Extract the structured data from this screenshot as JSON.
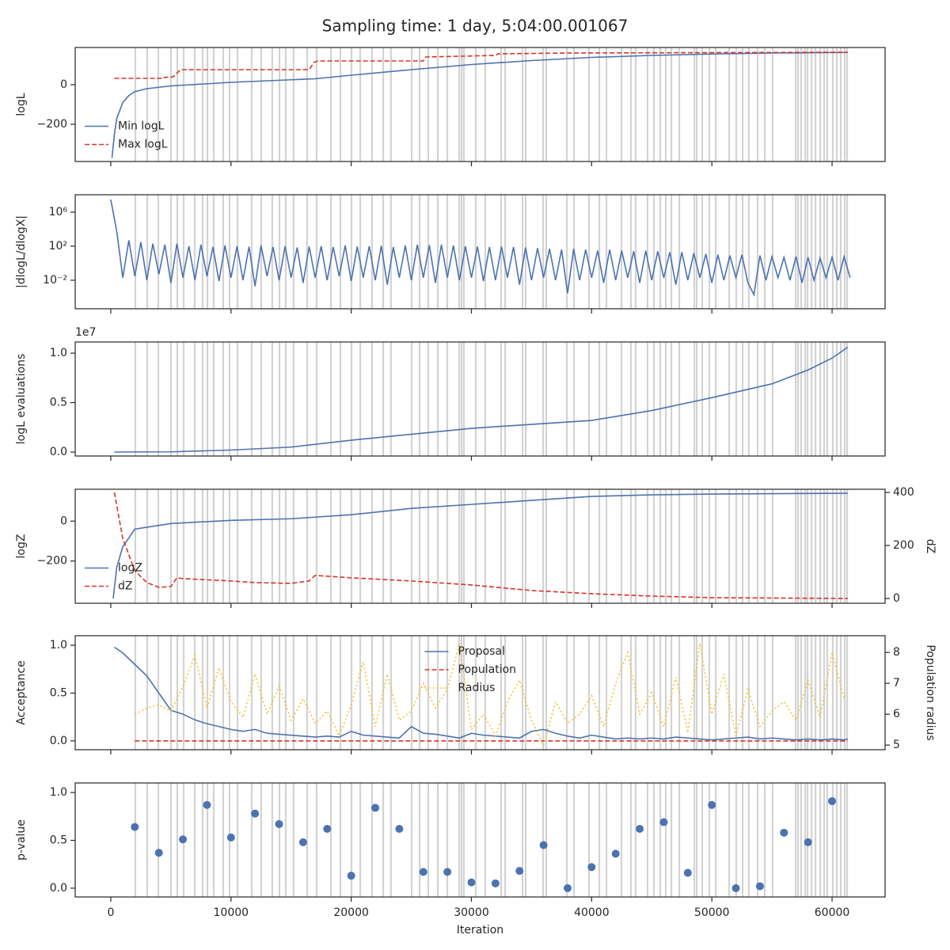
{
  "title": "Sampling time: 1 day, 5:04:00.001067",
  "vlines": [
    2040,
    3030,
    3950,
    5005,
    5530,
    6060,
    6980,
    7640,
    8035,
    8560,
    9350,
    9880,
    10540,
    11720,
    12510,
    13430,
    14030,
    14550,
    15210,
    16330,
    17120,
    18310,
    19100,
    20020,
    20750,
    21730,
    22660,
    23310,
    25030,
    25690,
    26410,
    27200,
    27990,
    28980,
    29180,
    29370,
    30360,
    31150,
    32470,
    32800,
    34250,
    34510,
    35960,
    36220,
    37940,
    38530,
    39780,
    40640,
    41230,
    42480,
    43270,
    43660,
    44650,
    45180,
    45710,
    46170,
    46630,
    47290,
    48540,
    48740,
    49200,
    49790,
    50320,
    51440,
    52030,
    52560,
    53080,
    53810,
    54400,
    55060,
    56970,
    57170,
    57430,
    57760,
    57960,
    58290,
    58620,
    59010,
    59340,
    59600,
    60060,
    60390,
    60720,
    61050,
    61250
  ],
  "chart_data": [
    {
      "type": "line",
      "ylabel": "logL",
      "xlim": [
        -2960,
        64410
      ],
      "ylim": [
        -388,
        188
      ],
      "yticks": [
        {
          "value": -200,
          "label": "−200"
        },
        0
      ],
      "legend": "lower left",
      "series": [
        {
          "name": "Min logL",
          "color": "#4c72b0",
          "style": "solid",
          "x": [
            100,
            300,
            500,
            1000,
            1500,
            2000,
            3000,
            5000,
            10000,
            15000,
            17000,
            20000,
            25000,
            30000,
            35000,
            40000,
            45000,
            50000,
            55000,
            61300
          ],
          "values": [
            -370,
            -250,
            -170,
            -90,
            -55,
            -35,
            -20,
            -6,
            12,
            25,
            30,
            48,
            76,
            102,
            122,
            138,
            148,
            155,
            160,
            163
          ]
        },
        {
          "name": "Max logL",
          "color": "#d6342b",
          "style": "dashed",
          "x": [
            300,
            4300,
            4300,
            5200,
            5800,
            16500,
            16900,
            17200,
            26000,
            26200,
            32000,
            32200,
            38000,
            61300
          ],
          "values": [
            32,
            32,
            36,
            40,
            76,
            76,
            112,
            120,
            120,
            140,
            148,
            156,
            160,
            164
          ]
        }
      ]
    },
    {
      "type": "line",
      "ylabel": "|dlogL/dlogX|",
      "yscale": "log",
      "xlim": [
        -2960,
        64410
      ],
      "ylim": [
        4.5e-06,
        110000000
      ],
      "yticks": [
        {
          "value": 0.01,
          "label": "10⁻²"
        },
        {
          "value": 100,
          "label": "10²"
        },
        {
          "value": 1000000,
          "label": "10⁶"
        }
      ],
      "series": [
        {
          "color": "#4c72b0",
          "style": "solid",
          "x": [
            0,
            500,
            1000,
            1500,
            2000,
            2500,
            3000,
            3500,
            4000,
            4500,
            5000,
            5500,
            6000,
            6500,
            7000,
            7500,
            8000,
            8500,
            9000,
            9500,
            10000,
            10500,
            11000,
            11500,
            12000,
            12500,
            13000,
            13500,
            14000,
            14500,
            15000,
            15500,
            16000,
            16500,
            17000,
            17500,
            18000,
            18500,
            19000,
            19500,
            20000,
            20500,
            21000,
            21500,
            22000,
            22500,
            23000,
            23500,
            24000,
            24500,
            25000,
            25500,
            26000,
            26500,
            27000,
            27500,
            28000,
            28500,
            29000,
            29500,
            30000,
            30500,
            31000,
            31500,
            32000,
            32500,
            33000,
            33500,
            34000,
            34500,
            35000,
            35500,
            36000,
            36500,
            37000,
            37500,
            38000,
            38500,
            39000,
            39500,
            40000,
            40500,
            41000,
            41500,
            42000,
            42500,
            43000,
            43500,
            44000,
            44500,
            45000,
            45500,
            46000,
            46500,
            47000,
            47500,
            48000,
            48500,
            49000,
            49500,
            50000,
            50500,
            51000,
            51500,
            52000,
            52500,
            53000,
            53500,
            54000,
            54500,
            55000,
            55500,
            56000,
            56500,
            57000,
            57500,
            58000,
            58500,
            59000,
            59500,
            60000,
            60500,
            61000,
            61500
          ],
          "values": [
            30000000,
            5000,
            0.02,
            500,
            0.03,
            300,
            0.01,
            200,
            0.05,
            150,
            0.005,
            200,
            0.02,
            100,
            0.01,
            150,
            0.03,
            80,
            0.008,
            120,
            0.02,
            100,
            0.01,
            90,
            0.002,
            120,
            0.03,
            80,
            0.01,
            100,
            0.02,
            70,
            0.005,
            90,
            0.02,
            100,
            0.01,
            80,
            0.03,
            120,
            0.008,
            90,
            0.02,
            100,
            0.01,
            110,
            0.003,
            80,
            0.02,
            120,
            0.01,
            150,
            0.02,
            130,
            0.005,
            150,
            0.02,
            120,
            0.01,
            100,
            0.02,
            90,
            0.008,
            80,
            0.01,
            90,
            0.02,
            80,
            0.003,
            70,
            0.01,
            60,
            0.02,
            50,
            0.01,
            40,
            0.0003,
            50,
            0.01,
            40,
            0.02,
            30,
            0.005,
            40,
            0.01,
            30,
            0.02,
            25,
            0.005,
            30,
            0.01,
            25,
            0.02,
            20,
            0.003,
            20,
            0.01,
            15,
            0.02,
            12,
            0.005,
            10,
            0.01,
            8,
            0.02,
            10,
            0.005,
            0.0002,
            8,
            0.01,
            6,
            0.02,
            5,
            0.01,
            6,
            0.005,
            5,
            0.01,
            4,
            0.02,
            5,
            0.01,
            6,
            0.02
          ]
        }
      ]
    },
    {
      "type": "line",
      "ylabel": "logL evaluations",
      "offset_label": "1e7",
      "xlim": [
        -2960,
        64410
      ],
      "ylim": [
        -400000,
        11130000
      ],
      "yticks": [
        {
          "value": 0,
          "label": "0.0"
        },
        {
          "value": 5000000,
          "label": "0.5"
        },
        {
          "value": 10000000,
          "label": "1.0"
        }
      ],
      "series": [
        {
          "color": "#4c72b0",
          "style": "solid",
          "x": [
            300,
            5000,
            10000,
            15000,
            20000,
            25000,
            30000,
            35000,
            40000,
            45000,
            50000,
            55000,
            58000,
            60000,
            61300
          ],
          "values": [
            0,
            20000,
            200000,
            500000,
            1200000,
            1800000,
            2400000,
            2800000,
            3200000,
            4200000,
            5500000,
            6900000,
            8300000,
            9500000,
            10600000
          ]
        }
      ]
    },
    {
      "type": "line",
      "ylabel": "logZ",
      "y2label": "dZ",
      "xlim": [
        -2960,
        64410
      ],
      "ylim": [
        -412,
        160
      ],
      "yticks": [
        {
          "value": -200,
          "label": "−200"
        },
        0
      ],
      "y2lim": [
        -18,
        412
      ],
      "y2ticks": [
        0,
        200,
        400
      ],
      "legend": "lower left",
      "series": [
        {
          "name": "logZ",
          "color": "#4c72b0",
          "style": "solid",
          "x": [
            200,
            500,
            1000,
            2000,
            5000,
            10000,
            15000,
            20000,
            25000,
            30000,
            35000,
            40000,
            45000,
            50000,
            61300
          ],
          "values": [
            -388,
            -230,
            -128,
            -40,
            -12,
            4,
            12,
            32,
            64,
            84,
            104,
            124,
            132,
            136,
            140
          ]
        },
        {
          "name": "dZ",
          "color": "#d6342b",
          "style": "dashed",
          "axis": "y2",
          "x": [
            300,
            1000,
            2000,
            3000,
            4000,
            5000,
            5500,
            6000,
            10000,
            12000,
            15000,
            16500,
            17000,
            20000,
            25000,
            30000,
            35000,
            40000,
            45000,
            50000,
            61300
          ],
          "values": [
            400,
            225,
            105,
            60,
            42,
            45,
            78,
            75,
            66,
            60,
            57,
            66,
            87,
            78,
            66,
            51,
            30,
            18,
            9,
            3,
            0
          ]
        }
      ]
    },
    {
      "type": "line",
      "ylabel": "Acceptance",
      "y2label": "Population radius",
      "xlim": [
        -2960,
        64410
      ],
      "ylim": [
        -0.092,
        1.1
      ],
      "yticks": [
        {
          "value": 0,
          "label": "0.0"
        },
        0.5,
        {
          "value": 1,
          "label": "1.0"
        }
      ],
      "y2lim": [
        4.85,
        8.54
      ],
      "y2ticks": [
        5,
        6,
        7,
        8
      ],
      "legend": "upper center",
      "series": [
        {
          "name": "Proposal",
          "color": "#4c72b0",
          "style": "solid",
          "x": [
            300,
            1000,
            2000,
            3000,
            4000,
            5000,
            6000,
            7000,
            8000,
            9000,
            10000,
            11000,
            12000,
            13000,
            14000,
            15000,
            16000,
            17000,
            18000,
            19000,
            20000,
            21000,
            22000,
            23000,
            24000,
            25000,
            26000,
            27000,
            28000,
            29000,
            30000,
            31000,
            32000,
            33000,
            34000,
            35000,
            36000,
            37000,
            38000,
            39000,
            40000,
            41000,
            42000,
            43000,
            44000,
            45000,
            46000,
            47000,
            48000,
            49000,
            50000,
            51000,
            52000,
            53000,
            54000,
            55000,
            56000,
            57000,
            58000,
            59000,
            60000,
            61000,
            61300
          ],
          "values": [
            0.98,
            0.92,
            0.8,
            0.68,
            0.5,
            0.32,
            0.28,
            0.22,
            0.18,
            0.15,
            0.12,
            0.1,
            0.12,
            0.08,
            0.07,
            0.06,
            0.05,
            0.04,
            0.05,
            0.04,
            0.1,
            0.06,
            0.05,
            0.04,
            0.03,
            0.15,
            0.08,
            0.07,
            0.05,
            0.03,
            0.08,
            0.06,
            0.05,
            0.04,
            0.03,
            0.1,
            0.12,
            0.08,
            0.05,
            0.03,
            0.06,
            0.04,
            0.02,
            0.03,
            0.02,
            0.03,
            0.02,
            0.04,
            0.03,
            0.02,
            0.01,
            0.02,
            0.03,
            0.04,
            0.02,
            0.03,
            0.02,
            0.01,
            0.02,
            0.01,
            0.02,
            0.01,
            0.02
          ]
        },
        {
          "name": "Population",
          "color": "#d6342b",
          "style": "dashed",
          "x": [
            2000,
            61300
          ],
          "values": [
            0,
            0
          ]
        },
        {
          "name": "Radius",
          "color": "#f2c12e",
          "style": "dotted",
          "axis": "y2",
          "x": [
            2000,
            3000,
            4000,
            5000,
            6000,
            7000,
            8000,
            9000,
            10000,
            11000,
            12000,
            13000,
            14000,
            15000,
            16000,
            17000,
            18000,
            19000,
            20000,
            21000,
            22000,
            23000,
            24000,
            25000,
            26000,
            27000,
            28000,
            29000,
            30000,
            31000,
            32000,
            33000,
            34000,
            35000,
            36000,
            37000,
            38000,
            39000,
            40000,
            41000,
            42000,
            43000,
            44000,
            45000,
            46000,
            47000,
            48000,
            49000,
            50000,
            51000,
            52000,
            53000,
            54000,
            55000,
            56000,
            57000,
            58000,
            59000,
            60000,
            61000
          ],
          "values": [
            6.0,
            6.2,
            6.3,
            6.1,
            6.9,
            7.9,
            6.2,
            7.5,
            6.4,
            5.9,
            7.3,
            6.0,
            6.9,
            5.8,
            6.5,
            5.7,
            6.1,
            5.3,
            6.3,
            7.7,
            5.6,
            7.3,
            5.8,
            6.1,
            7.0,
            6.2,
            6.8,
            8.3,
            5.5,
            6.0,
            5.3,
            6.4,
            7.1,
            5.8,
            5.0,
            6.4,
            5.7,
            6.0,
            6.6,
            5.6,
            7.0,
            8.0,
            6.0,
            6.7,
            5.6,
            7.2,
            5.4,
            8.3,
            6.0,
            7.3,
            5.3,
            6.8,
            5.6,
            6.1,
            6.4,
            5.8,
            7.1,
            5.9,
            8.0,
            6.5
          ]
        }
      ]
    },
    {
      "type": "scatter",
      "ylabel": "p-value",
      "xlabel": "Iteration",
      "xlim": [
        -2960,
        64410
      ],
      "ylim": [
        -0.092,
        1.1
      ],
      "yticks": [
        {
          "value": 0,
          "label": "0.0"
        },
        0.5,
        {
          "value": 1,
          "label": "1.0"
        }
      ],
      "xticks": [
        0,
        10000,
        20000,
        30000,
        40000,
        50000,
        60000
      ],
      "series": [
        {
          "color": "#4c72b0",
          "x": [
            2000,
            4000,
            6000,
            8000,
            10000,
            12000,
            14000,
            16000,
            18000,
            20000,
            22000,
            24000,
            26000,
            28000,
            30000,
            32000,
            34000,
            36000,
            38000,
            40000,
            42000,
            44000,
            46000,
            48000,
            50000,
            52000,
            54000,
            56000,
            58000,
            60000
          ],
          "values": [
            0.64,
            0.37,
            0.51,
            0.87,
            0.53,
            0.78,
            0.67,
            0.48,
            0.62,
            0.13,
            0.84,
            0.62,
            0.17,
            0.17,
            0.06,
            0.05,
            0.18,
            0.45,
            0.0,
            0.22,
            0.36,
            0.62,
            0.69,
            0.16,
            0.87,
            0.0,
            0.02,
            0.58,
            0.48,
            0.91
          ]
        }
      ]
    }
  ]
}
